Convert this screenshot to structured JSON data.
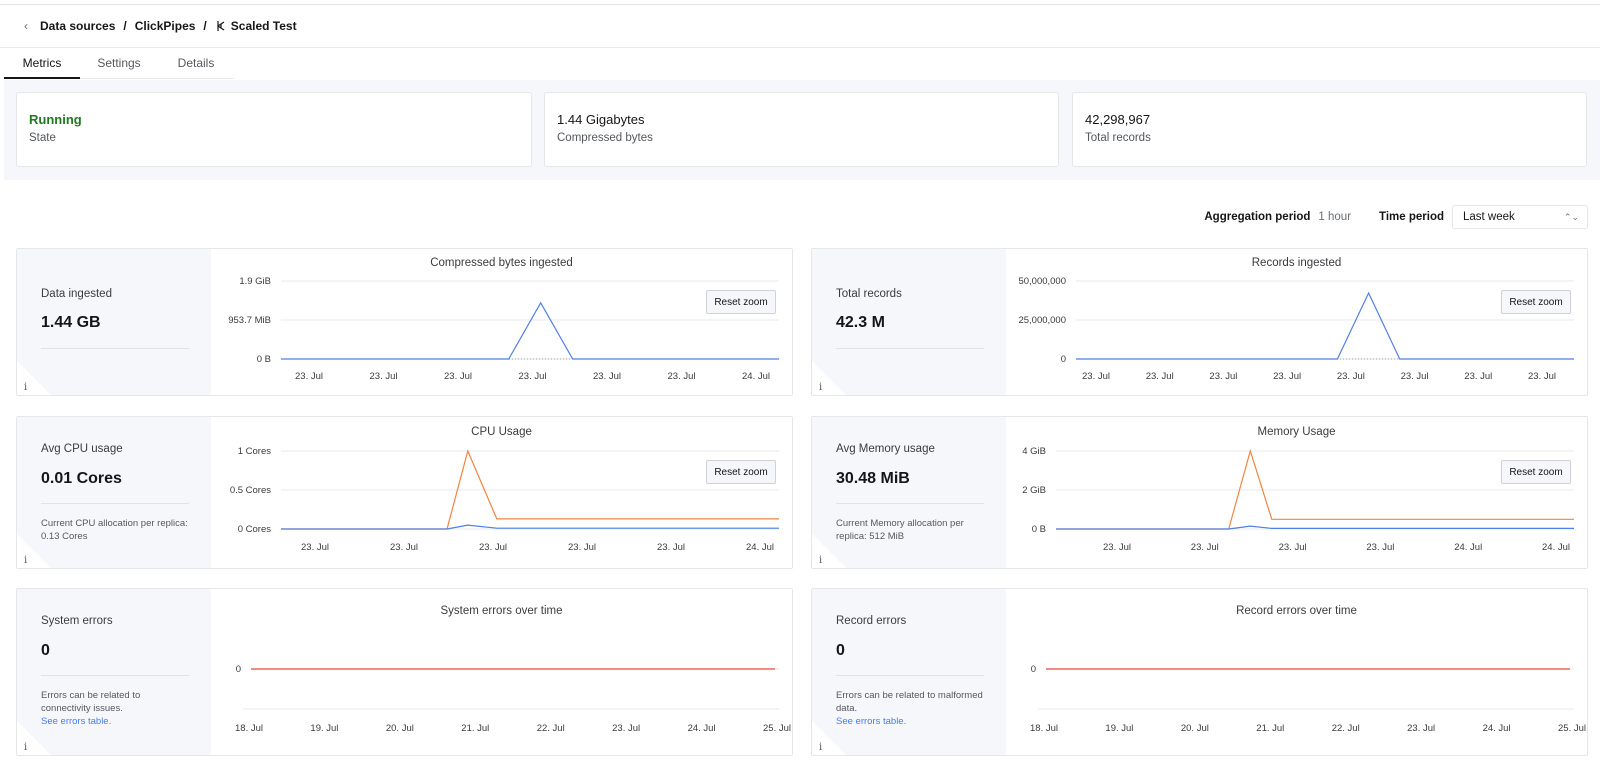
{
  "breadcrumb": {
    "back_icon": "chevron-left-icon",
    "items": [
      "Data sources",
      "ClickPipes",
      "Scaled Test"
    ],
    "separator": "/",
    "pipe_icon": "clickpipe-icon"
  },
  "tabs": [
    {
      "label": "Metrics",
      "active": true
    },
    {
      "label": "Settings",
      "active": false
    },
    {
      "label": "Details",
      "active": false
    }
  ],
  "stats": [
    {
      "value": "Running",
      "label": "State",
      "color": "#1f7a1f"
    },
    {
      "value": "1.44 Gigabytes",
      "label": "Compressed bytes"
    },
    {
      "value": "42,298,967",
      "label": "Total records"
    }
  ],
  "controls": {
    "aggregation_label": "Aggregation period",
    "aggregation_value": "1 hour",
    "time_label": "Time period",
    "time_value": "Last week"
  },
  "colors": {
    "blue": "#4f7fe8",
    "orange": "#f3843f",
    "red": "#e8473a",
    "grid": "#e8e9ec"
  },
  "cards": {
    "data_ingested": {
      "title": "Data ingested",
      "value": "1.44 GB",
      "info": "i",
      "chart_title": "Compressed bytes ingested",
      "reset": "Reset zoom"
    },
    "total_records": {
      "title": "Total records",
      "value": "42.3 M",
      "info": "i",
      "chart_title": "Records ingested",
      "reset": "Reset zoom"
    },
    "cpu": {
      "title": "Avg CPU usage",
      "value": "0.01 Cores",
      "note": "Current CPU allocation per replica: 0.13 Cores",
      "info": "i",
      "chart_title": "CPU Usage",
      "reset": "Reset zoom"
    },
    "memory": {
      "title": "Avg Memory usage",
      "value": "30.48 MiB",
      "note": "Current Memory allocation per replica: 512 MiB",
      "info": "i",
      "chart_title": "Memory Usage",
      "reset": "Reset zoom"
    },
    "system_errors": {
      "title": "System errors",
      "value": "0",
      "note": "Errors can be related to connectivity issues.",
      "link": "See errors table.",
      "info": "i",
      "chart_title": "System errors over time"
    },
    "record_errors": {
      "title": "Record errors",
      "value": "0",
      "note": "Errors can be related to malformed data.",
      "link": "See errors table.",
      "info": "i",
      "chart_title": "Record errors over time"
    }
  },
  "chart_data": [
    {
      "type": "line",
      "title": "Compressed bytes ingested",
      "y_ticks": [
        "0 B",
        "953.7 MiB",
        "1.9 GiB"
      ],
      "ylim": [
        0,
        2
      ],
      "x_ticks": [
        "23. Jul",
        "23. Jul",
        "23. Jul",
        "23. Jul",
        "23. Jul",
        "23. Jul",
        "24. Jul"
      ],
      "series": [
        {
          "color": "#4f7fe8",
          "x": [
            0,
            3.2,
            3.65,
            4.1,
            7
          ],
          "y": [
            0,
            0,
            1.44,
            0,
            0
          ]
        }
      ]
    },
    {
      "type": "line",
      "title": "Records ingested",
      "y_ticks": [
        "0",
        "25,000,000",
        "50,000,000"
      ],
      "ylim": [
        0,
        50000000
      ],
      "x_ticks": [
        "23. Jul",
        "23. Jul",
        "23. Jul",
        "23. Jul",
        "23. Jul",
        "23. Jul",
        "23. Jul",
        "23. Jul"
      ],
      "series": [
        {
          "color": "#4f7fe8",
          "x": [
            0,
            4.2,
            4.7,
            5.2,
            8
          ],
          "y": [
            0,
            0,
            42298967,
            0,
            0
          ]
        }
      ]
    },
    {
      "type": "line",
      "title": "CPU Usage",
      "y_ticks": [
        "0 Cores",
        "0.5 Cores",
        "1 Cores"
      ],
      "ylim": [
        0,
        1
      ],
      "x_ticks": [
        "23. Jul",
        "23. Jul",
        "23. Jul",
        "23. Jul",
        "23. Jul",
        "24. Jul"
      ],
      "series": [
        {
          "color": "#f3843f",
          "x": [
            0,
            2.0,
            2.25,
            2.6,
            6
          ],
          "y": [
            0,
            0,
            1.0,
            0.13,
            0.13
          ]
        },
        {
          "color": "#4f7fe8",
          "x": [
            0,
            2.0,
            2.25,
            2.6,
            6
          ],
          "y": [
            0,
            0,
            0.05,
            0.01,
            0.01
          ]
        }
      ]
    },
    {
      "type": "line",
      "title": "Memory Usage",
      "y_ticks": [
        "0 B",
        "2 GiB",
        "4 GiB"
      ],
      "ylim": [
        0,
        4
      ],
      "x_ticks": [
        "23. Jul",
        "23. Jul",
        "23. Jul",
        "23. Jul",
        "24. Jul",
        "24. Jul"
      ],
      "series": [
        {
          "color": "#f3843f",
          "x": [
            0,
            2.0,
            2.25,
            2.5,
            6
          ],
          "y": [
            0,
            0,
            4.0,
            0.5,
            0.5
          ]
        },
        {
          "color": "#4f7fe8",
          "x": [
            0,
            2.0,
            2.25,
            2.5,
            6
          ],
          "y": [
            0,
            0,
            0.15,
            0.03,
            0.03
          ]
        }
      ]
    },
    {
      "type": "line",
      "title": "System errors over time",
      "y_ticks": [
        "0"
      ],
      "x_ticks": [
        "18. Jul",
        "19. Jul",
        "20. Jul",
        "21. Jul",
        "22. Jul",
        "23. Jul",
        "24. Jul",
        "25. Jul"
      ],
      "series": [
        {
          "color": "#e8473a",
          "y": [
            0,
            0
          ]
        }
      ]
    },
    {
      "type": "line",
      "title": "Record errors over time",
      "y_ticks": [
        "0"
      ],
      "x_ticks": [
        "18. Jul",
        "19. Jul",
        "20. Jul",
        "21. Jul",
        "22. Jul",
        "23. Jul",
        "24. Jul",
        "25. Jul"
      ],
      "series": [
        {
          "color": "#e8473a",
          "y": [
            0,
            0
          ]
        }
      ]
    }
  ]
}
